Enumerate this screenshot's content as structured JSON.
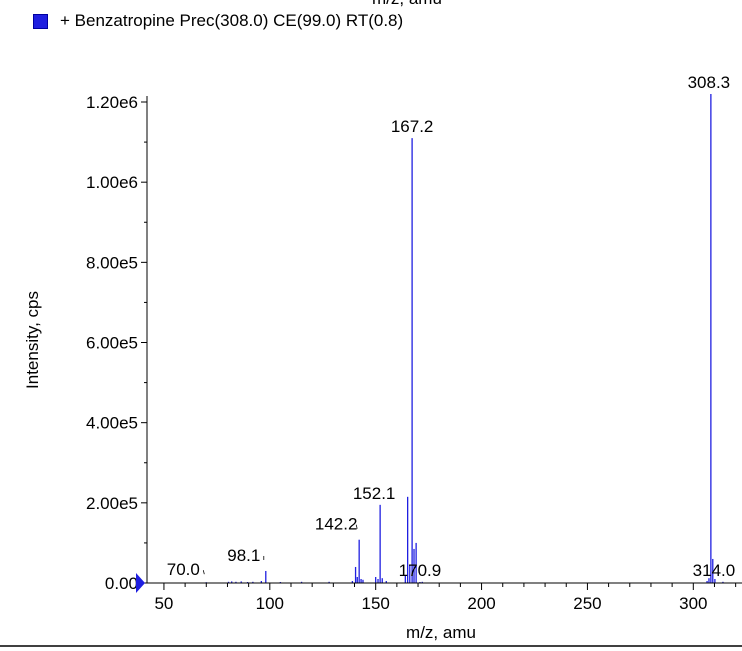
{
  "header": {
    "cut_axis_label": "m/z, amu"
  },
  "legend": {
    "label": "+ Benzatropine Prec(308.0) CE(99.0) RT(0.8)",
    "color": "#1f1fe0"
  },
  "chart_data": {
    "type": "bar",
    "title": "",
    "xlabel": "m/z, amu",
    "ylabel": "Intensity, cps",
    "xlim": [
      42,
      323
    ],
    "ylim": [
      0,
      1230000
    ],
    "y_ticks": [
      0,
      200000,
      400000,
      600000,
      800000,
      1000000,
      1200000
    ],
    "y_tick_labels": [
      "0.00",
      "2.00e5",
      "4.00e5",
      "6.00e5",
      "8.00e5",
      "1.00e6",
      "1.20e6"
    ],
    "x_ticks": [
      50,
      100,
      150,
      200,
      250,
      300
    ],
    "x_tick_labels": [
      "50",
      "100",
      "150",
      "200",
      "250",
      "300"
    ],
    "grid": false,
    "series": [
      {
        "color": "#1f1fe0",
        "points": [
          {
            "x": 70.0,
            "y": 2000
          },
          {
            "x": 80.5,
            "y": 3000
          },
          {
            "x": 82.0,
            "y": 4000
          },
          {
            "x": 84.0,
            "y": 3000
          },
          {
            "x": 86.5,
            "y": 4000
          },
          {
            "x": 89.5,
            "y": 2500
          },
          {
            "x": 92.0,
            "y": 3000
          },
          {
            "x": 96.0,
            "y": 5000
          },
          {
            "x": 98.1,
            "y": 30000
          },
          {
            "x": 105.0,
            "y": 2500
          },
          {
            "x": 115.0,
            "y": 3000
          },
          {
            "x": 128.0,
            "y": 3000
          },
          {
            "x": 139.0,
            "y": 5000
          },
          {
            "x": 140.5,
            "y": 40000
          },
          {
            "x": 141.3,
            "y": 15000
          },
          {
            "x": 142.2,
            "y": 108000
          },
          {
            "x": 143.1,
            "y": 10000
          },
          {
            "x": 144.0,
            "y": 8000
          },
          {
            "x": 150.0,
            "y": 15000
          },
          {
            "x": 151.1,
            "y": 10000
          },
          {
            "x": 152.1,
            "y": 195000
          },
          {
            "x": 153.1,
            "y": 12000
          },
          {
            "x": 155.0,
            "y": 5000
          },
          {
            "x": 164.0,
            "y": 18000
          },
          {
            "x": 165.1,
            "y": 215000
          },
          {
            "x": 166.1,
            "y": 45000
          },
          {
            "x": 167.2,
            "y": 1110000
          },
          {
            "x": 168.1,
            "y": 85000
          },
          {
            "x": 169.1,
            "y": 100000
          },
          {
            "x": 170.9,
            "y": 2500
          },
          {
            "x": 172.0,
            "y": 3000
          },
          {
            "x": 306.5,
            "y": 5000
          },
          {
            "x": 307.4,
            "y": 12000
          },
          {
            "x": 308.3,
            "y": 1220000
          },
          {
            "x": 309.2,
            "y": 60000
          },
          {
            "x": 310.2,
            "y": 10000
          },
          {
            "x": 314.0,
            "y": 3000
          }
        ]
      }
    ],
    "peak_labels": [
      {
        "x": 70.0,
        "text": "70.0"
      },
      {
        "x": 98.1,
        "text": "98.1"
      },
      {
        "x": 142.2,
        "text": "142.2"
      },
      {
        "x": 152.1,
        "text": "152.1"
      },
      {
        "x": 167.2,
        "text": "167.2"
      },
      {
        "x": 170.9,
        "text": "170.9"
      },
      {
        "x": 308.3,
        "text": "308.3"
      },
      {
        "x": 314.0,
        "text": "314.0"
      }
    ]
  }
}
